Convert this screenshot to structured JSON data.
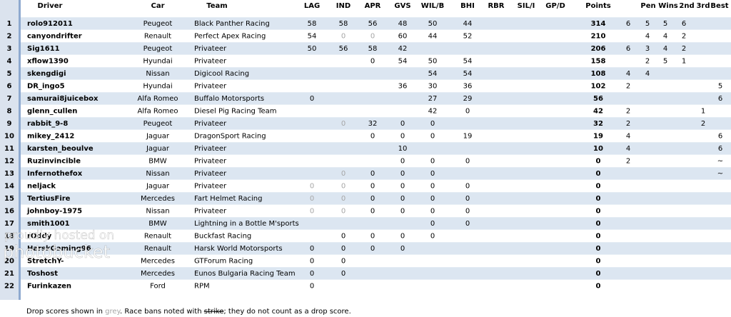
{
  "table": {
    "header": [
      null,
      "Driver",
      "Car",
      "Team",
      "LAG",
      "IND",
      "APR",
      "GVS",
      "WIL/B",
      "BHI",
      "RBR",
      "SIL/I",
      "GP/D",
      "Points",
      null,
      "Pen",
      "Wins",
      "2nd",
      "3rd",
      "Best"
    ],
    "rows": [
      [
        1,
        "rolo912011",
        "Peugeot",
        "Black Panther Racing",
        58,
        58,
        56,
        48,
        50,
        44,
        null,
        null,
        null,
        314,
        6,
        5,
        5,
        6,
        null,
        null
      ],
      [
        2,
        "canyondrifter",
        "Renault",
        "Perfect Apex Racing",
        54,
        {
          "text": 0,
          "color": "#a6a6a6"
        },
        {
          "text": 0,
          "color": "#a6a6a6"
        },
        60,
        44,
        52,
        null,
        null,
        null,
        210,
        null,
        4,
        4,
        2,
        null,
        null
      ],
      [
        3,
        "Sig1611",
        "Peugeot",
        "Privateer",
        50,
        56,
        58,
        42,
        null,
        null,
        null,
        null,
        null,
        206,
        6,
        3,
        4,
        2,
        null,
        null
      ],
      [
        4,
        "xflow1390",
        "Hyundai",
        "Privateer",
        null,
        null,
        0,
        54,
        50,
        54,
        null,
        null,
        null,
        158,
        null,
        2,
        5,
        1,
        null,
        null
      ],
      [
        5,
        "skengdigi",
        "Nissan",
        "Digicool Racing",
        null,
        null,
        null,
        null,
        54,
        54,
        null,
        null,
        null,
        108,
        4,
        4,
        null,
        null,
        null,
        null
      ],
      [
        6,
        "DR_ingo5",
        "Hyundai",
        "Privateer",
        null,
        null,
        null,
        36,
        30,
        36,
        null,
        null,
        null,
        102,
        2,
        null,
        null,
        null,
        null,
        5
      ],
      [
        7,
        "samurai8juicebox",
        "Alfa Romeo",
        "Buffalo Motorsports",
        0,
        null,
        null,
        null,
        27,
        29,
        null,
        null,
        null,
        56,
        null,
        null,
        null,
        null,
        null,
        6
      ],
      [
        8,
        "glenn_cullen",
        "Alfa Romeo",
        "Diesel Pig Racing Team",
        null,
        null,
        null,
        null,
        42,
        0,
        null,
        null,
        null,
        42,
        2,
        null,
        null,
        null,
        1,
        null
      ],
      [
        9,
        "rabbit_9-8",
        "Peugeot",
        "Privateer",
        null,
        {
          "text": 0,
          "color": "#a6a6a6"
        },
        32,
        0,
        0,
        null,
        null,
        null,
        null,
        32,
        2,
        null,
        null,
        null,
        2,
        null
      ],
      [
        10,
        "mikey_2412",
        "Jaguar",
        "DragonSport Racing",
        null,
        null,
        0,
        0,
        0,
        19,
        null,
        null,
        null,
        19,
        4,
        null,
        null,
        null,
        null,
        6
      ],
      [
        11,
        "karsten_beoulve",
        "Jaguar",
        "Privateer",
        null,
        null,
        null,
        10,
        null,
        null,
        null,
        null,
        null,
        10,
        4,
        null,
        null,
        null,
        null,
        6
      ],
      [
        12,
        "Ruzinvincible",
        "BMW",
        "Privateer",
        null,
        null,
        null,
        0,
        0,
        0,
        null,
        null,
        null,
        0,
        2,
        null,
        null,
        null,
        null,
        "~"
      ],
      [
        13,
        "Infernothefox",
        "Nissan",
        "Privateer",
        null,
        {
          "text": 0,
          "color": "#a6a6a6"
        },
        0,
        0,
        0,
        null,
        null,
        null,
        null,
        0,
        null,
        null,
        null,
        null,
        null,
        "~"
      ],
      [
        14,
        "neljack",
        "Jaguar",
        "Privateer",
        {
          "text": 0,
          "color": "#a6a6a6"
        },
        {
          "text": 0,
          "color": "#a6a6a6"
        },
        0,
        0,
        0,
        0,
        null,
        null,
        null,
        0,
        null,
        null,
        null,
        null,
        null,
        null
      ],
      [
        15,
        "TertiusFire",
        "Mercedes",
        "Fart Helmet Racing",
        {
          "text": 0,
          "color": "#a6a6a6"
        },
        {
          "text": 0,
          "color": "#a6a6a6"
        },
        0,
        0,
        0,
        0,
        null,
        null,
        null,
        0,
        null,
        null,
        null,
        null,
        null,
        null
      ],
      [
        16,
        "johnboy-1975",
        "Nissan",
        "Privateer",
        {
          "text": 0,
          "color": "#a6a6a6"
        },
        {
          "text": 0,
          "color": "#a6a6a6"
        },
        0,
        0,
        0,
        0,
        null,
        null,
        null,
        0,
        null,
        null,
        null,
        null,
        null,
        null
      ],
      [
        17,
        "smith1001",
        "BMW",
        "Lightning in a Bottle M'sports",
        null,
        null,
        null,
        null,
        0,
        0,
        null,
        null,
        null,
        0,
        null,
        null,
        null,
        null,
        null,
        null
      ],
      [
        18,
        "rOddy",
        "Renault",
        "Buckfast Racing",
        null,
        0,
        0,
        0,
        0,
        null,
        null,
        null,
        null,
        0,
        null,
        null,
        null,
        null,
        null,
        null
      ],
      [
        19,
        "HarskGaming96",
        "Renault",
        "Harsk World Motorsports",
        0,
        0,
        0,
        0,
        null,
        null,
        null,
        null,
        null,
        0,
        null,
        null,
        null,
        null,
        null,
        null
      ],
      [
        20,
        "StretchY-",
        "Mercedes",
        "GTForum Racing",
        0,
        0,
        null,
        null,
        null,
        null,
        null,
        null,
        null,
        0,
        null,
        null,
        null,
        null,
        null,
        null
      ],
      [
        21,
        "Toshost",
        "Mercedes",
        "Eunos Bulgaria Racing Team",
        0,
        0,
        null,
        null,
        null,
        null,
        null,
        null,
        null,
        0,
        null,
        null,
        null,
        null,
        null,
        null
      ],
      [
        22,
        "Furinkazen",
        "Ford",
        "RPM",
        0,
        null,
        null,
        null,
        null,
        null,
        null,
        null,
        null,
        0,
        null,
        null,
        null,
        null,
        null,
        null
      ]
    ]
  },
  "footer": [
    "Drop scores shown in ",
    "grey",
    ". Race bans noted with ",
    "strike",
    "; they do not count as a drop score."
  ],
  "watermark": [
    "proudly hosted on",
    "photobucket"
  ]
}
